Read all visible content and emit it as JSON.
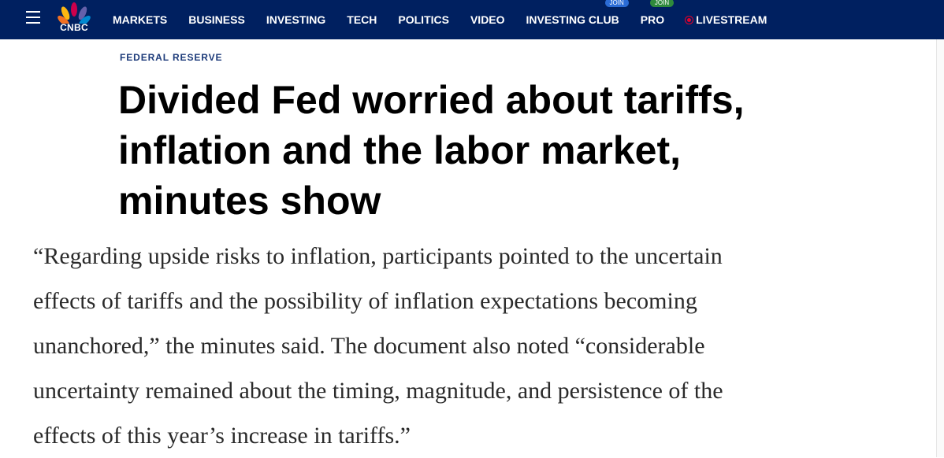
{
  "nav": {
    "logo": "CNBC",
    "items": [
      "MARKETS",
      "BUSINESS",
      "INVESTING",
      "TECH",
      "POLITICS",
      "VIDEO",
      "INVESTING CLUB",
      "PRO",
      "LIVESTREAM"
    ],
    "badges": {
      "6": "JOIN",
      "7": "JOIN"
    }
  },
  "article": {
    "section": "FEDERAL RESERVE",
    "headline": [
      "Divided Fed worried about tariffs,",
      "inflation and the labor market,",
      "minutes show"
    ],
    "quote": [
      "“Regarding upside risks to inflation, participants pointed to the uncertain",
      "effects of tariffs and the possibility of inflation expectations becoming",
      "unanchored,” the minutes said. The document also noted “considerable",
      "uncertainty remained about the timing, magnitude, and persistence of the",
      "effects of this year’s increase in tariffs.”"
    ]
  }
}
